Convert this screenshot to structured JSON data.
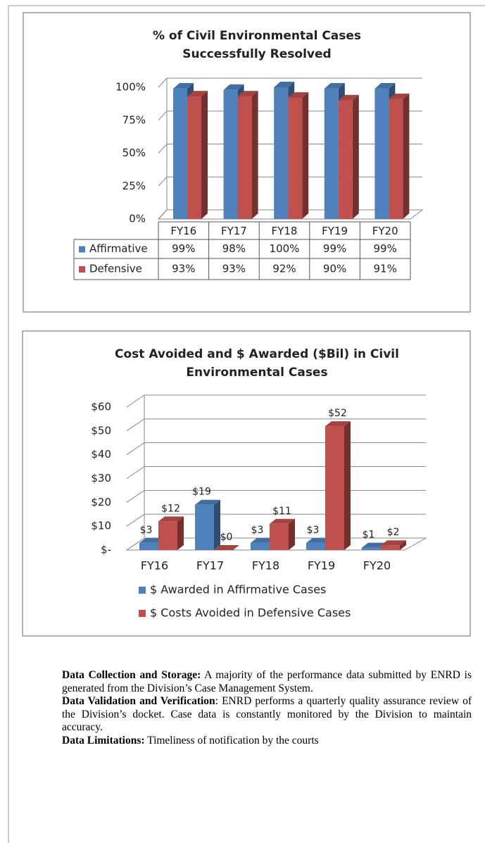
{
  "chart_data": [
    {
      "type": "bar3d_table",
      "title": "% of  Civil Environmental Cases Successfully Resolved",
      "categories": [
        "FY16",
        "FY17",
        "FY18",
        "FY19",
        "FY20"
      ],
      "series": [
        {
          "name": "Affirmative",
          "color": "#4f81bd",
          "values": [
            99,
            98,
            100,
            99,
            99
          ],
          "value_labels": [
            "99%",
            "98%",
            "100%",
            "99%",
            "99%"
          ]
        },
        {
          "name": "Defensive",
          "color": "#c0504d",
          "values": [
            93,
            93,
            92,
            90,
            91
          ],
          "value_labels": [
            "93%",
            "93%",
            "92%",
            "90%",
            "91%"
          ]
        }
      ],
      "ylim": [
        0,
        100
      ],
      "yticks": [
        {
          "value": 0,
          "label": "0%"
        },
        {
          "value": 25,
          "label": "25%"
        },
        {
          "value": 50,
          "label": "50%"
        },
        {
          "value": 75,
          "label": "75%"
        },
        {
          "value": 100,
          "label": "100%"
        }
      ],
      "grid": true
    },
    {
      "type": "bar3d",
      "title": "Cost Avoided and $ Awarded ($Bil) in Civil Environmental Cases",
      "categories": [
        "FY16",
        "FY17",
        "FY18",
        "FY19",
        "FY20"
      ],
      "series": [
        {
          "name": "$ Awarded in Affirmative Cases",
          "color": "#4f81bd",
          "values": [
            3,
            19,
            3,
            3,
            1
          ],
          "value_labels": [
            "$3",
            "$19",
            "$3",
            "$3",
            "$1"
          ]
        },
        {
          "name": "$ Costs Avoided in Defensive Cases",
          "color": "#c0504d",
          "values": [
            12,
            0,
            11,
            52,
            2
          ],
          "value_labels": [
            "$12",
            "$0",
            "$11",
            "$52",
            "$2"
          ]
        }
      ],
      "ylim": [
        0,
        60
      ],
      "yticks": [
        {
          "value": 0,
          "label": "$-"
        },
        {
          "value": 10,
          "label": "$10"
        },
        {
          "value": 20,
          "label": "$20"
        },
        {
          "value": 30,
          "label": "$30"
        },
        {
          "value": 40,
          "label": "$40"
        },
        {
          "value": 50,
          "label": "$50"
        },
        {
          "value": 60,
          "label": "$60"
        }
      ],
      "grid": true,
      "legend": "bottom"
    }
  ],
  "text": [
    {
      "lead": "Data Collection and Storage:",
      "body": " A majority of the performance data submitted by ENRD is generated from the Division’s Case Management System."
    },
    {
      "lead": "Data Validation and Verification",
      "body": ": ENRD performs a quarterly quality assurance review of the Division’s docket.  Case data is constantly monitored by the Division to maintain accuracy."
    },
    {
      "lead": "Data Limitations:",
      "body": " Timeliness of notification by the courts"
    }
  ]
}
